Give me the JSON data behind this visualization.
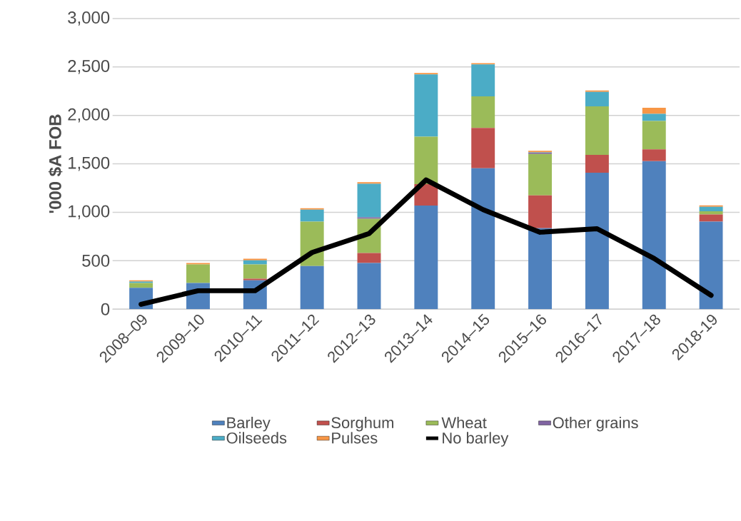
{
  "chart_data": {
    "type": "bar",
    "stacked": true,
    "ylabel": "'000 $A FOB",
    "categories": [
      "2008–09",
      "2009–10",
      "2010–11",
      "2011–12",
      "2012–13",
      "2013–14",
      "2014–15",
      "2015–16",
      "2016–17",
      "2017–18",
      "2018-19"
    ],
    "series": [
      {
        "name": "Barley",
        "color": "#4f81bd",
        "values": [
          220,
          270,
          297,
          445,
          477,
          1069,
          1455,
          835,
          1408,
          1528,
          904
        ]
      },
      {
        "name": "Sorghum",
        "color": "#c0504d",
        "values": [
          0,
          0,
          18,
          0,
          103,
          221,
          415,
          339,
          184,
          121,
          74
        ]
      },
      {
        "name": "Wheat",
        "color": "#9bbb59",
        "values": [
          50,
          192,
          147,
          459,
          354,
          491,
          327,
          428,
          501,
          294,
          32
        ]
      },
      {
        "name": "Other grains",
        "color": "#8064a2",
        "values": [
          0,
          0,
          0,
          0,
          14,
          0,
          0,
          12,
          0,
          0,
          0
        ]
      },
      {
        "name": "Oilseeds",
        "color": "#4bacc6",
        "values": [
          15,
          0,
          42,
          123,
          347,
          642,
          329,
          5,
          150,
          74,
          47
        ]
      },
      {
        "name": "Pulses",
        "color": "#f79646",
        "values": [
          12,
          15,
          17,
          15,
          15,
          14,
          14,
          15,
          15,
          61,
          14
        ]
      },
      {
        "name": "No barley",
        "type": "line",
        "color": "#000000",
        "values": [
          50,
          190,
          190,
          585,
          780,
          1334,
          1027,
          794,
          830,
          523,
          143
        ]
      }
    ],
    "ylim": [
      0,
      3000
    ],
    "yticks": [
      0,
      500,
      {
        "value": 1000,
        "label": "1,000"
      },
      {
        "value": 1500,
        "label": "1,500"
      },
      {
        "value": 2000,
        "label": "2,000"
      },
      {
        "value": 2500,
        "label": "2,500"
      },
      {
        "value": 3000,
        "label": "3,000"
      }
    ],
    "grid": "y",
    "legend": "bottom"
  }
}
